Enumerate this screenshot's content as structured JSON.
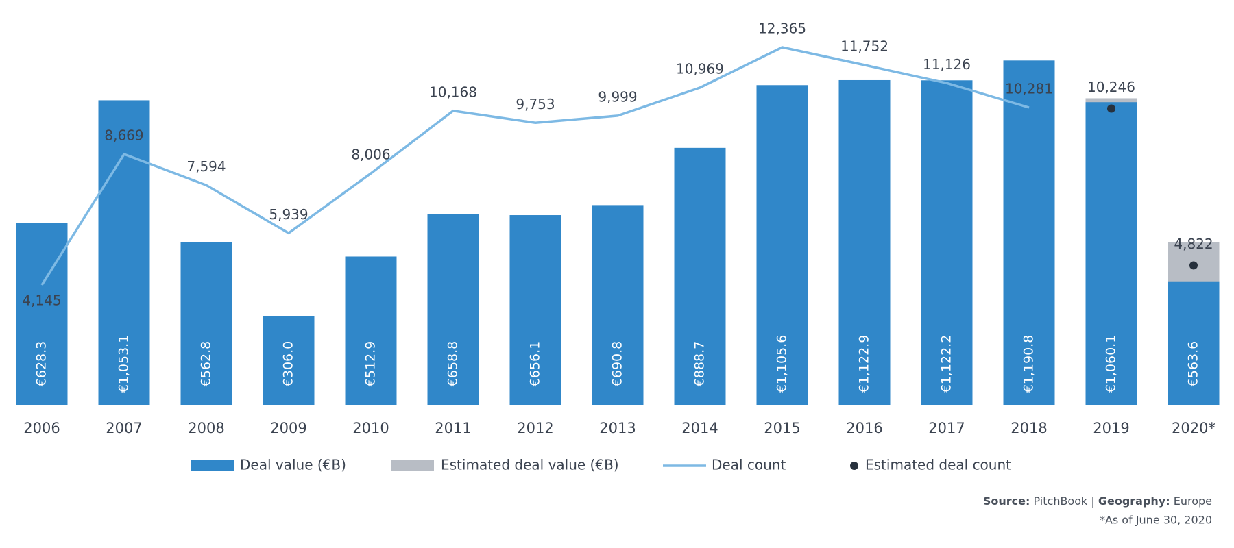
{
  "chart_data": {
    "type": "bar",
    "categories": [
      "2006",
      "2007",
      "2008",
      "2009",
      "2010",
      "2011",
      "2012",
      "2013",
      "2014",
      "2015",
      "2016",
      "2017",
      "2018",
      "2019",
      "2020*"
    ],
    "ylim": [
      0,
      1400
    ],
    "y2lim": [
      0,
      14000
    ],
    "grid": false,
    "legend": "bottom",
    "series": [
      {
        "name": "Deal value (€B)",
        "color": "#3087c9",
        "values": [
          628.3,
          1053.1,
          562.8,
          306.0,
          512.9,
          658.8,
          656.1,
          690.8,
          888.7,
          1105.6,
          1122.9,
          1122.2,
          1190.8,
          1060.1,
          563.6
        ],
        "value_labels": [
          "€628.3",
          "€1,053.1",
          "€562.8",
          "€306.0",
          "€512.9",
          "€658.8",
          "€656.1",
          "€690.8",
          "€888.7",
          "€1,105.6",
          "€1,122.9",
          "€1,122.2",
          "€1,190.8",
          "€1,060.1",
          "€563.6"
        ]
      },
      {
        "name": "Estimated deal value (€B)",
        "color": "#b8bdc5",
        "values": [
          null,
          null,
          null,
          null,
          null,
          null,
          null,
          null,
          null,
          null,
          null,
          null,
          null,
          13.6,
          136.6
        ]
      },
      {
        "name": "Deal count",
        "type": "line",
        "axis": "y2",
        "color": "#7db9e4",
        "values": [
          4145,
          8669,
          7594,
          5939,
          8006,
          10168,
          9753,
          9999,
          10969,
          12365,
          11752,
          11126,
          10281,
          null,
          null
        ],
        "value_labels": [
          "4,145",
          "8,669",
          "7,594",
          "5,939",
          "8,006",
          "10,168",
          "9,753",
          "9,999",
          "10,969",
          "12,365",
          "11,752",
          "11,126",
          "10,281",
          null,
          null
        ]
      },
      {
        "name": "Estimated deal count",
        "type": "scatter",
        "axis": "y2",
        "color": "#27313d",
        "values": [
          null,
          null,
          null,
          null,
          null,
          null,
          null,
          null,
          null,
          null,
          null,
          null,
          null,
          10246,
          4822
        ],
        "value_labels": [
          null,
          null,
          null,
          null,
          null,
          null,
          null,
          null,
          null,
          null,
          null,
          null,
          null,
          "10,246",
          "4,822"
        ]
      }
    ],
    "footer": {
      "source_label": "Source:",
      "source": "PitchBook |",
      "geography_label": "Geography:",
      "geography": "Europe",
      "note": "*As of June 30, 2020"
    }
  }
}
